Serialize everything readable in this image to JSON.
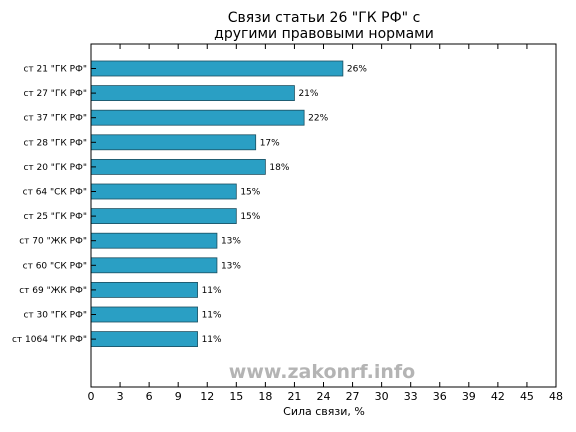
{
  "chart_data": {
    "type": "bar",
    "orientation": "horizontal",
    "title": [
      "Связи статьи 26 \"ГК РФ\" с",
      "другими правовыми нормами"
    ],
    "xlabel": "Сила связи, %",
    "ylabel": "",
    "xlim": [
      0,
      48
    ],
    "xticks": [
      0,
      3,
      6,
      9,
      12,
      15,
      18,
      21,
      24,
      27,
      30,
      33,
      36,
      39,
      42,
      45,
      48
    ],
    "categories": [
      "ст 21 \"ГК РФ\"",
      "ст 27 \"ГК РФ\"",
      "ст 37 \"ГК РФ\"",
      "ст 28 \"ГК РФ\"",
      "ст 20 \"ГК РФ\"",
      "ст 64 \"СК РФ\"",
      "ст 25 \"ГК РФ\"",
      "ст 70 \"ЖК РФ\"",
      "ст 60 \"СК РФ\"",
      "ст 69 \"ЖК РФ\"",
      "ст 30 \"ГК РФ\"",
      "ст 1064 \"ГК РФ\""
    ],
    "values": [
      26,
      21,
      22,
      17,
      18,
      15,
      15,
      13,
      13,
      11,
      11,
      11
    ],
    "value_labels": [
      "26%",
      "21%",
      "22%",
      "17%",
      "18%",
      "15%",
      "15%",
      "13%",
      "13%",
      "11%",
      "11%",
      "11%"
    ],
    "bar_color": "#2a9fc4",
    "grid": false,
    "watermark": "www.zakonrf.info"
  }
}
